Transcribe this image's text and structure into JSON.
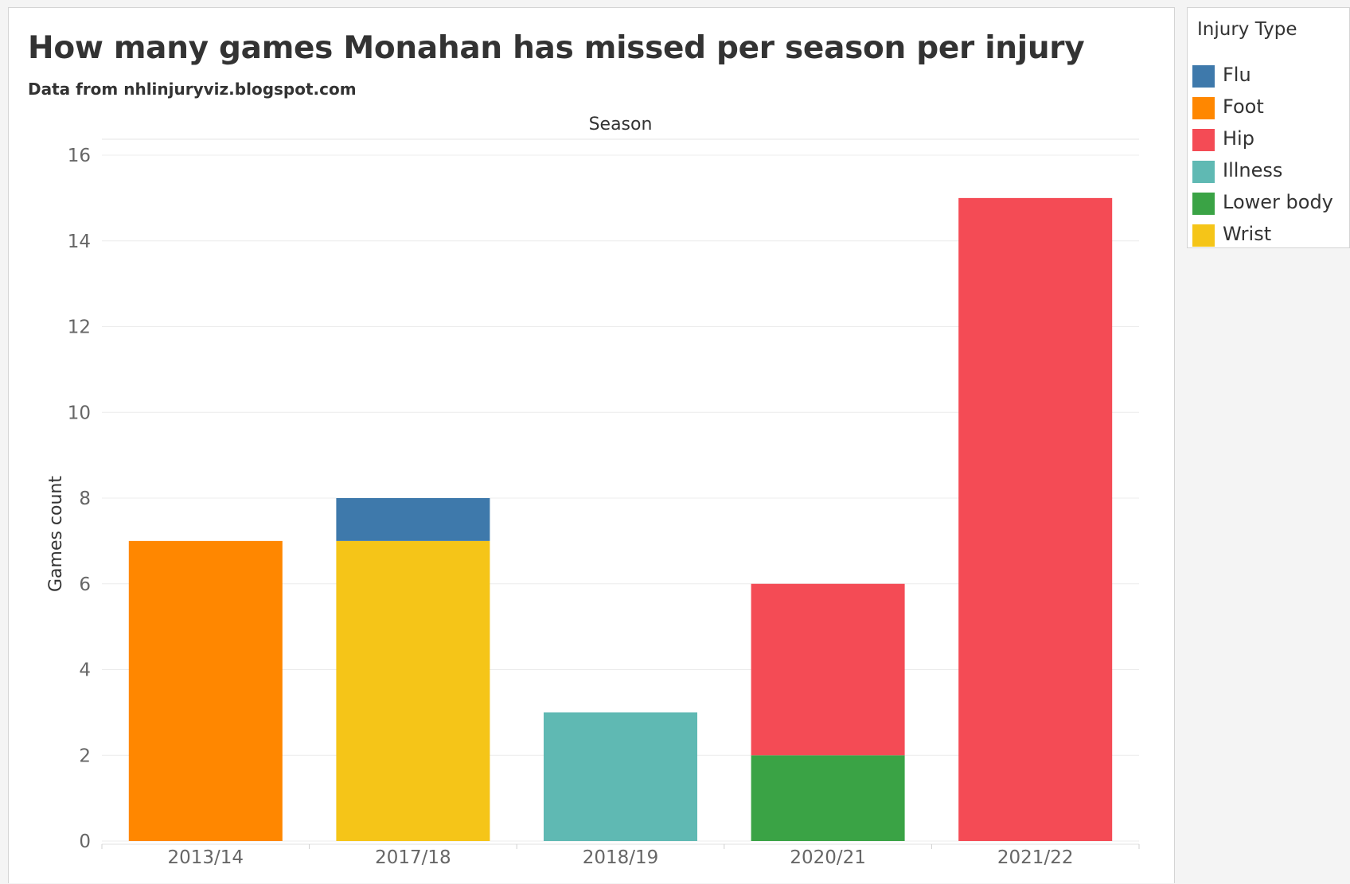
{
  "chart_data": {
    "type": "bar",
    "stacked": true,
    "title": "How many games Monahan has missed per season per injury",
    "subtitle": "Data from nhlinjuryviz.blogspot.com",
    "xlabel": "Season",
    "ylabel": "Games count",
    "categories": [
      "2013/14",
      "2017/18",
      "2018/19",
      "2020/21",
      "2021/22"
    ],
    "ylim": [
      0,
      16
    ],
    "yticks": [
      0,
      2,
      4,
      6,
      8,
      10,
      12,
      14,
      16
    ],
    "grid": true,
    "legend_position": "right",
    "legend_title": "Injury Type",
    "series": [
      {
        "name": "Lower body",
        "color": "#3aa345",
        "values": [
          0,
          0,
          0,
          2,
          0
        ]
      },
      {
        "name": "Foot",
        "color": "#ff8700",
        "values": [
          7,
          0,
          0,
          0,
          0
        ]
      },
      {
        "name": "Wrist",
        "color": "#f5c518",
        "values": [
          0,
          7,
          0,
          0,
          0
        ]
      },
      {
        "name": "Illness",
        "color": "#5fb9b3",
        "values": [
          0,
          0,
          3,
          0,
          0
        ]
      },
      {
        "name": "Hip",
        "color": "#f44b55",
        "values": [
          0,
          0,
          0,
          4,
          15
        ]
      },
      {
        "name": "Flu",
        "color": "#3e79ab",
        "values": [
          0,
          1,
          0,
          0,
          0
        ]
      }
    ],
    "legend_order": [
      "Flu",
      "Foot",
      "Hip",
      "Illness",
      "Lower body",
      "Wrist"
    ]
  }
}
